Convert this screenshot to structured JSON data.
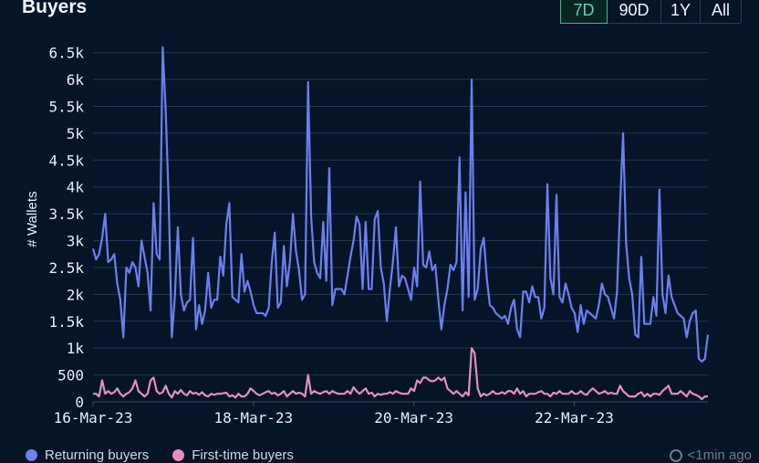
{
  "header": {
    "title": "Buyers",
    "ranges": [
      {
        "label": "7D",
        "active": true
      },
      {
        "label": "90D",
        "active": false
      },
      {
        "label": "1Y",
        "active": false
      },
      {
        "label": "All",
        "active": false
      }
    ]
  },
  "footer": {
    "legend": [
      {
        "label": "Returning buyers",
        "color": "#6b7ff0"
      },
      {
        "label": "First-time buyers",
        "color": "#e38fbd"
      }
    ],
    "updated": "<1min ago"
  },
  "chart_data": {
    "type": "line",
    "ylabel": "# Wallets",
    "xlabel": "",
    "ylim": [
      0,
      6800
    ],
    "yticks": [
      0,
      500,
      1000,
      1500,
      2000,
      2500,
      3000,
      3500,
      4000,
      4500,
      5000,
      5500,
      6000,
      6500
    ],
    "ytick_labels": [
      "0",
      "500",
      "1k",
      "1.5k",
      "2k",
      "2.5k",
      "3k",
      "3.5k",
      "4k",
      "4.5k",
      "5k",
      "5.5k",
      "6k",
      "6.5k"
    ],
    "x_start": "2023-03-16T00:00",
    "x_end": "2023-03-23T16:00",
    "x_tick_labels": [
      {
        "label": "16-Mar-23",
        "date": "2023-03-16"
      },
      {
        "label": "18-Mar-23",
        "date": "2023-03-18"
      },
      {
        "label": "20-Mar-23",
        "date": "2023-03-20"
      },
      {
        "label": "22-Mar-23",
        "date": "2023-03-22"
      }
    ],
    "grid": true,
    "legend_position": "bottom-left",
    "series": [
      {
        "name": "Returning buyers",
        "color": "#6b7ff0",
        "values": [
          2850,
          2650,
          2750,
          3050,
          3500,
          2600,
          2650,
          2750,
          2200,
          1900,
          1200,
          2500,
          2400,
          2600,
          2500,
          2150,
          3000,
          2700,
          2400,
          1700,
          3700,
          2750,
          2650,
          6600,
          5400,
          3700,
          1200,
          1950,
          3250,
          2000,
          1700,
          1850,
          1900,
          3050,
          1350,
          1800,
          1450,
          1700,
          2400,
          1750,
          1900,
          1900,
          2700,
          2350,
          3300,
          3700,
          1950,
          1900,
          1850,
          2750,
          2050,
          2250,
          2050,
          1800,
          1650,
          1650,
          1650,
          1600,
          1750,
          2600,
          3150,
          1750,
          1850,
          2900,
          2150,
          2600,
          3500,
          2800,
          2450,
          1900,
          2000,
          5950,
          3450,
          2600,
          2400,
          2300,
          3350,
          2250,
          4350,
          1800,
          2100,
          2100,
          2100,
          2000,
          2350,
          2700,
          3000,
          3450,
          3300,
          2100,
          3350,
          2100,
          2100,
          3400,
          3550,
          2500,
          2200,
          1500,
          2100,
          2600,
          3250,
          2150,
          2350,
          2300,
          2100,
          1900,
          2500,
          2150,
          4100,
          2550,
          2500,
          2800,
          2450,
          2550,
          1900,
          1350,
          1800,
          2100,
          2550,
          2450,
          2600,
          4550,
          1700,
          3900,
          1950,
          6000,
          1900,
          2100,
          2850,
          3050,
          2300,
          1800,
          1750,
          1650,
          1600,
          1550,
          1600,
          1450,
          1750,
          1900,
          1350,
          1200,
          2050,
          2050,
          1850,
          2150,
          1950,
          1950,
          1550,
          1750,
          4050,
          2300,
          2000,
          3850,
          1950,
          1850,
          2200,
          2000,
          1750,
          1650,
          1300,
          1800,
          1450,
          1700,
          1650,
          1600,
          1550,
          1800,
          2200,
          2000,
          1950,
          1750,
          1550,
          2050,
          3650,
          5000,
          2950,
          2300,
          2000,
          1250,
          1200,
          2700,
          1450,
          1450,
          1450,
          1950,
          1600,
          3950,
          2000,
          1650,
          2350,
          1950,
          1800,
          1650,
          1600,
          1550,
          1200,
          1500,
          1650,
          1700,
          800,
          750,
          800,
          1250
        ]
      },
      {
        "name": "First-time buyers",
        "color": "#e38fbd",
        "values": [
          150,
          150,
          100,
          400,
          150,
          200,
          150,
          180,
          250,
          150,
          100,
          150,
          180,
          250,
          400,
          200,
          150,
          100,
          150,
          400,
          450,
          200,
          150,
          180,
          300,
          150,
          80,
          200,
          150,
          220,
          150,
          120,
          200,
          150,
          170,
          130,
          180,
          120,
          100,
          150,
          130,
          150,
          150,
          160,
          170,
          100,
          120,
          80,
          150,
          100,
          100,
          150,
          250,
          200,
          150,
          120,
          150,
          180,
          200,
          150,
          170,
          120,
          150,
          200,
          100,
          150,
          200,
          150,
          170,
          150,
          100,
          500,
          150,
          200,
          170,
          150,
          180,
          200,
          150,
          200,
          170,
          150,
          150,
          150,
          200,
          150,
          270,
          200,
          150,
          200,
          250,
          150,
          170,
          100,
          150,
          130,
          150,
          150,
          180,
          150,
          200,
          170,
          150,
          150,
          150,
          250,
          200,
          400,
          350,
          450,
          450,
          400,
          380,
          400,
          450,
          400,
          450,
          250,
          200,
          150,
          200,
          150,
          100,
          180,
          120,
          1000,
          900,
          250,
          100,
          150,
          120,
          150,
          200,
          150,
          150,
          180,
          150,
          200,
          200,
          150,
          250,
          150,
          200,
          100,
          150,
          150,
          150,
          180,
          200,
          150,
          150,
          100,
          170,
          150,
          200,
          150,
          150,
          150,
          200,
          150,
          150,
          200,
          150,
          130,
          200,
          250,
          200,
          150,
          170,
          200,
          150,
          170,
          150,
          150,
          300,
          200,
          150,
          100,
          100,
          100,
          150,
          180,
          100,
          150,
          100,
          150,
          150,
          130,
          200,
          250,
          300,
          150,
          150,
          150,
          200,
          150,
          100,
          200,
          150,
          130,
          100,
          50,
          100,
          100
        ]
      }
    ]
  }
}
